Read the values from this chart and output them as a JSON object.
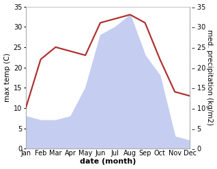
{
  "months": [
    "Jan",
    "Feb",
    "Mar",
    "Apr",
    "May",
    "Jun",
    "Jul",
    "Aug",
    "Sep",
    "Oct",
    "Nov",
    "Dec"
  ],
  "temperature": [
    10,
    22,
    25,
    24,
    23,
    31,
    32,
    33,
    31,
    22,
    14,
    13
  ],
  "precipitation": [
    8,
    7,
    7,
    8,
    15,
    28,
    30,
    33,
    23,
    18,
    3,
    2
  ],
  "temp_color": "#b03030",
  "precip_fill_color": "#c5cef0",
  "ylim_left": [
    0,
    35
  ],
  "ylim_right": [
    0,
    35
  ],
  "yticks": [
    0,
    5,
    10,
    15,
    20,
    25,
    30,
    35
  ],
  "ylabel_left": "max temp (C)",
  "ylabel_right": "med. precipitation (kg/m2)",
  "xlabel": "date (month)",
  "bg_color": "#ffffff",
  "spine_color": "#aaaaaa",
  "temp_linewidth": 1.6,
  "xlabel_fontsize": 8,
  "ylabel_fontsize": 7.5,
  "tick_fontsize": 7,
  "right_tick_label_format": "- {}"
}
